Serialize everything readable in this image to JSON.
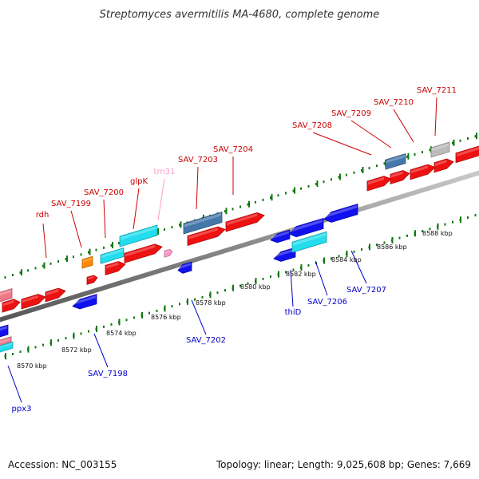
{
  "title": "Streptomyces avermitilis MA-4680, complete genome",
  "footer": {
    "accession": "Accession: NC_003155",
    "summary": "Topology: linear; Length: 9,025,608 bp; Genes: 7,669"
  },
  "colors": {
    "forward_gene": "#ee1111",
    "reverse_gene": "#1111ee",
    "cyan_gene": "#22ddee",
    "steel_gene": "#4477aa",
    "rna_gene": "#ff99cc",
    "orange_gene": "#ff8800",
    "grey_gene": "#bbbbbb",
    "pink_gene": "#ee7788",
    "forward_label": "#cc0000",
    "reverse_label": "#0000cc",
    "rna_label": "#ff99cc",
    "axis": "#888888",
    "tick": "#117711"
  },
  "scale": {
    "tick_labels": [
      "8570 kbp",
      "8572 kbp",
      "8574 kbp",
      "8576 kbp",
      "8578 kbp",
      "8580 kbp",
      "8582 kbp",
      "8584 kbp",
      "8586 kbp",
      "8588 kbp"
    ]
  },
  "forward_labels": [
    "rdh",
    "SAV_7199",
    "SAV_7200",
    "glpK",
    "SAV_7203",
    "SAV_7204",
    "SAV_7208",
    "SAV_7209",
    "SAV_7210",
    "SAV_7211"
  ],
  "rna_labels": [
    "trn31"
  ],
  "reverse_labels": [
    "ppx3",
    "SAV_7198",
    "SAV_7202",
    "thiD",
    "SAV_7206",
    "SAV_7207"
  ]
}
